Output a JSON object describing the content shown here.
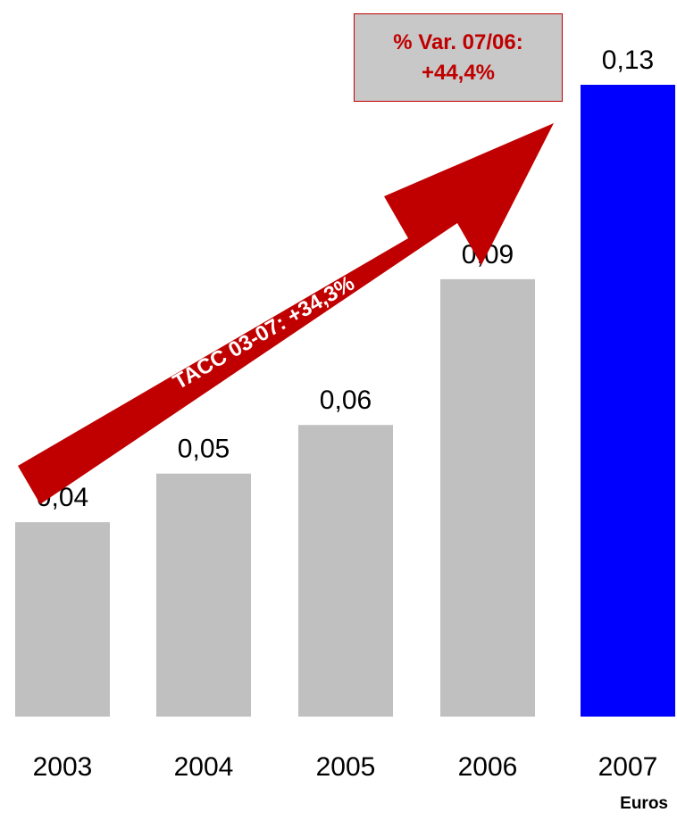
{
  "chart_data": {
    "type": "bar",
    "categories": [
      "2003",
      "2004",
      "2005",
      "2006",
      "2007"
    ],
    "values": [
      0.04,
      0.05,
      0.06,
      0.09,
      0.13
    ],
    "value_labels": [
      "0,04",
      "0,05",
      "0,06",
      "0,09",
      "0,13"
    ],
    "unit": "Euros",
    "ylim": [
      0,
      0.13
    ],
    "grid": false,
    "colors": {
      "bar_default": "#c0c0c0",
      "bar_highlight": "#0000ff",
      "arrow": "#c00000",
      "box_fill": "#c8c8c8",
      "box_text": "#c00000"
    },
    "highlight_index": 4,
    "annotations": {
      "arrow_text": "TACC 03-07: +34,3%",
      "box_line1": "% Var. 07/06:",
      "box_line2": "+44,4%"
    }
  }
}
